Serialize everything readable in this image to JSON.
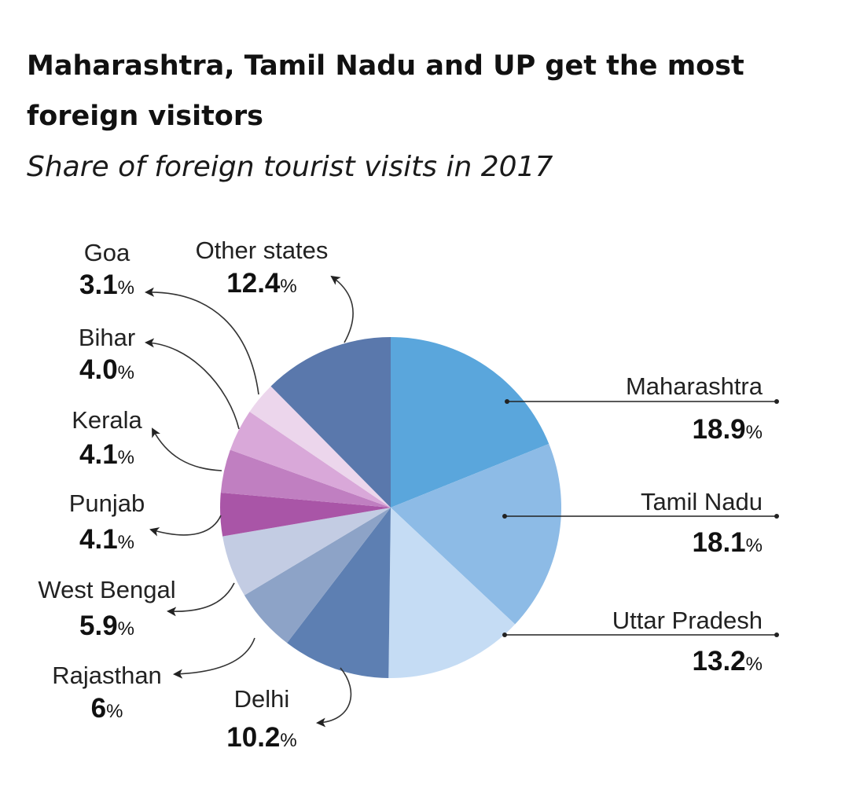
{
  "header": {
    "title": "Maharashtra, Tamil Nadu and UP get the most foreign visitors",
    "subtitle": "Share of foreign tourist visits in 2017"
  },
  "chart_data": {
    "type": "pie",
    "title": "Maharashtra, Tamil Nadu and UP get the most foreign visitors",
    "subtitle": "Share of foreign tourist visits in 2017",
    "unit": "%",
    "start_angle_deg": 0,
    "direction": "clockwise",
    "slices": [
      {
        "label": "Maharashtra",
        "value": 18.9,
        "display": "18.9",
        "color": "#5aa6dc"
      },
      {
        "label": "Tamil Nadu",
        "value": 18.1,
        "display": "18.1",
        "color": "#8dbbe6"
      },
      {
        "label": "Uttar Pradesh",
        "value": 13.2,
        "display": "13.2",
        "color": "#c5dcf4"
      },
      {
        "label": "Delhi",
        "value": 10.2,
        "display": "10.2",
        "color": "#5d7fb2"
      },
      {
        "label": "Rajasthan",
        "value": 6,
        "display": "6",
        "color": "#8da3c7"
      },
      {
        "label": "West Bengal",
        "value": 5.9,
        "display": "5.9",
        "color": "#c3cce3"
      },
      {
        "label": "Punjab",
        "value": 4.1,
        "display": "4.1",
        "color": "#a955a7"
      },
      {
        "label": "Kerala",
        "value": 4.1,
        "display": "4.1",
        "color": "#c07fc1"
      },
      {
        "label": "Bihar",
        "value": 4.0,
        "display": "4.0",
        "color": "#d9a8d9"
      },
      {
        "label": "Goa",
        "value": 3.1,
        "display": "3.1",
        "color": "#ecd6ec"
      },
      {
        "label": "Other states",
        "value": 12.4,
        "display": "12.4",
        "color": "#5a78ac"
      }
    ]
  }
}
